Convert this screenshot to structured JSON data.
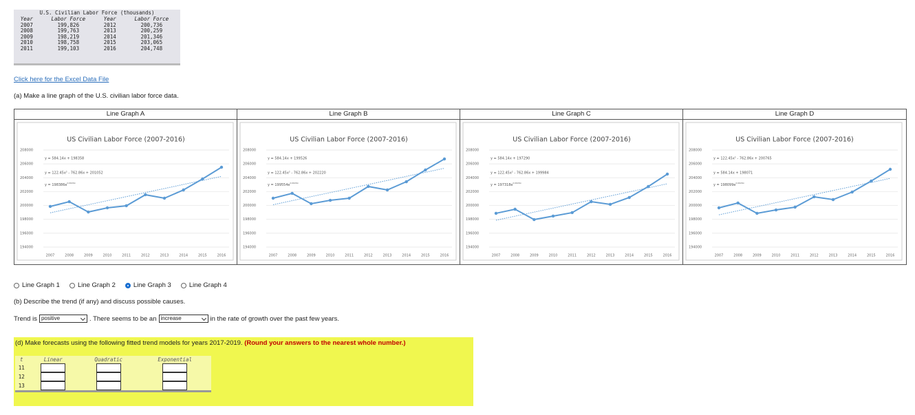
{
  "data_table": {
    "title": "U.S. Civilian Labor Force (thousands)",
    "headers": [
      "Year",
      "Labor Force",
      "Year",
      "Labor Force"
    ],
    "rows": [
      [
        "2007",
        "199,826",
        "2012",
        "200,736"
      ],
      [
        "2008",
        "199,763",
        "2013",
        "200,259"
      ],
      [
        "2009",
        "198,219",
        "2014",
        "201,346"
      ],
      [
        "2010",
        "198,758",
        "2015",
        "203,065"
      ],
      [
        "2011",
        "199,103",
        "2016",
        "204,748"
      ]
    ]
  },
  "link": "Click here for the Excel Data File",
  "part_a": "(a) Make a line graph of the U.S. civilian labor force data.",
  "graphs": [
    {
      "heading": "Line Graph A",
      "chart_data": {
        "type": "line",
        "title": "US Civilian Labor Force (2007-2016)",
        "categories": [
          "2007",
          "2008",
          "2009",
          "2010",
          "2011",
          "2012",
          "2013",
          "2014",
          "2015",
          "2016"
        ],
        "values": [
          199860,
          200550,
          199060,
          199660,
          199960,
          201550,
          201050,
          202240,
          203830,
          205520
        ],
        "trendline": [
          198942,
          204199
        ],
        "color": "#5b9bd5",
        "equations": [
          "y = 584.14x + 198358",
          "y = 122.45x² - 762.86x + 201052",
          {
            "base": "y = 198386e",
            "exponent": "0.0029x"
          }
        ],
        "ylim": [
          194000,
          208000
        ],
        "yticks": [
          194000,
          196000,
          198000,
          200000,
          202000,
          204000,
          206000,
          208000
        ],
        "grid": true
      }
    },
    {
      "heading": "Line Graph B",
      "chart_data": {
        "type": "line",
        "title": "US Civilian Labor Force (2007-2016)",
        "categories": [
          "2007",
          "2008",
          "2009",
          "2010",
          "2011",
          "2012",
          "2013",
          "2014",
          "2015",
          "2016"
        ],
        "values": [
          201050,
          201750,
          200260,
          200750,
          201050,
          202740,
          202240,
          203430,
          205120,
          206710
        ],
        "trendline": [
          200110,
          205367
        ],
        "color": "#5b9bd5",
        "equations": [
          "y = 584.14x + 199526",
          "y = 122.45x² - 762.86x + 202220",
          {
            "base": "y = 199554e",
            "exponent": "0.0029x"
          }
        ],
        "ylim": [
          194000,
          208000
        ],
        "yticks": [
          194000,
          196000,
          198000,
          200000,
          202000,
          204000,
          206000,
          208000
        ],
        "grid": true
      }
    },
    {
      "heading": "Line Graph C",
      "chart_data": {
        "type": "line",
        "title": "US Civilian Labor Force (2007-2016)",
        "categories": [
          "2007",
          "2008",
          "2009",
          "2010",
          "2011",
          "2012",
          "2013",
          "2014",
          "2015",
          "2016"
        ],
        "values": [
          198870,
          199460,
          197970,
          198470,
          198970,
          200550,
          200160,
          201150,
          202740,
          204530
        ],
        "trendline": [
          197874,
          203131
        ],
        "color": "#5b9bd5",
        "equations": [
          "y = 584.14x + 197290",
          "y = 122.45x² - 762.86x + 199984",
          {
            "base": "y = 197318e",
            "exponent": "0.0029x"
          }
        ],
        "ylim": [
          194000,
          208000
        ],
        "yticks": [
          194000,
          196000,
          198000,
          200000,
          202000,
          204000,
          206000,
          208000
        ],
        "grid": true
      }
    },
    {
      "heading": "Line Graph D",
      "chart_data": {
        "type": "line",
        "title": "US Civilian Labor Force (2007-2016)",
        "categories": [
          "2007",
          "2008",
          "2009",
          "2010",
          "2011",
          "2012",
          "2013",
          "2014",
          "2015",
          "2016"
        ],
        "values": [
          199660,
          200360,
          198870,
          199360,
          199760,
          201250,
          200850,
          201940,
          203530,
          205220
        ],
        "trendline": [
          198655,
          203912
        ],
        "color": "#5b9bd5",
        "equations": [
          "y = 122.45x² - 762.86x + 200765",
          "y = 584.14x + 198071",
          {
            "base": "y = 198099e",
            "exponent": "0.0029x"
          }
        ],
        "ylim": [
          194000,
          208000
        ],
        "yticks": [
          194000,
          196000,
          198000,
          200000,
          202000,
          204000,
          206000,
          208000
        ],
        "grid": true
      }
    }
  ],
  "options": [
    "Line Graph 1",
    "Line Graph 2",
    "Line Graph 3",
    "Line Graph 4"
  ],
  "selected_option": 2,
  "part_b": "(b) Describe the trend (if any) and discuss possible causes.",
  "trend_sentence": {
    "before": "Trend is",
    "select_1": "positive",
    "middle": ". There seems to be an",
    "select_2": "increase",
    "after": "in the rate of growth over the past few years."
  },
  "part_d": {
    "text": "(d) Make forecasts using the following fitted trend models for years 2017-2019.",
    "note": "(Round your answers to the nearest whole number.)"
  },
  "forecast_table": {
    "headers": [
      "t",
      "Linear",
      "Quadratic",
      "Exponential"
    ],
    "t": [
      "11",
      "12",
      "13"
    ]
  }
}
